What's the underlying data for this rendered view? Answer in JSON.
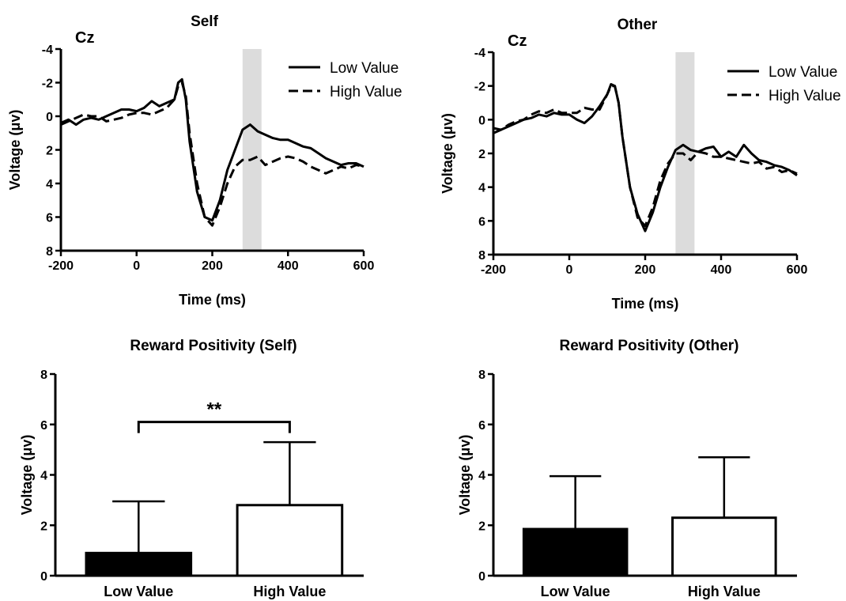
{
  "chart_data": [
    {
      "type": "line",
      "title": "Self",
      "channel": "Cz",
      "xlabel": "Time (ms)",
      "ylabel": "Voltage (μv)",
      "xlim": [
        -200,
        600
      ],
      "ylim": [
        8,
        -4
      ],
      "y_inverted": true,
      "xticks": [
        "-200",
        "0",
        "200",
        "400",
        "600"
      ],
      "yticks": [
        "-4",
        "-2",
        "0",
        "2",
        "4",
        "6",
        "8"
      ],
      "highlight": [
        280,
        330
      ],
      "legend": "top-right",
      "series": [
        {
          "name": "Low Value",
          "style": "solid",
          "x": [
            -200,
            -180,
            -160,
            -140,
            -120,
            -100,
            -80,
            -60,
            -40,
            -20,
            0,
            20,
            40,
            60,
            80,
            100,
            110,
            120,
            130,
            140,
            160,
            180,
            200,
            220,
            240,
            260,
            280,
            300,
            320,
            340,
            360,
            380,
            400,
            420,
            440,
            460,
            480,
            500,
            520,
            540,
            560,
            580,
            600
          ],
          "y": [
            0.4,
            0.2,
            0.5,
            0.2,
            0.1,
            0.2,
            0.0,
            -0.2,
            -0.4,
            -0.4,
            -0.3,
            -0.5,
            -0.9,
            -0.6,
            -0.8,
            -1.0,
            -2.0,
            -2.2,
            -1.0,
            1.5,
            4.5,
            6.0,
            6.2,
            5.0,
            3.2,
            2.0,
            0.8,
            0.5,
            0.9,
            1.1,
            1.3,
            1.4,
            1.4,
            1.6,
            1.8,
            1.9,
            2.2,
            2.5,
            2.7,
            2.9,
            2.8,
            2.8,
            3.0
          ]
        },
        {
          "name": "High Value",
          "style": "dashed",
          "x": [
            -200,
            -180,
            -160,
            -140,
            -120,
            -100,
            -80,
            -60,
            -40,
            -20,
            0,
            20,
            40,
            60,
            80,
            100,
            110,
            120,
            130,
            140,
            160,
            180,
            200,
            220,
            240,
            260,
            280,
            300,
            320,
            340,
            360,
            380,
            400,
            420,
            440,
            460,
            480,
            500,
            520,
            540,
            560,
            580,
            600
          ],
          "y": [
            0.5,
            0.3,
            0.1,
            -0.1,
            0.0,
            0.0,
            0.3,
            0.2,
            0.1,
            -0.1,
            -0.2,
            -0.2,
            -0.1,
            -0.3,
            -0.5,
            -1.0,
            -1.8,
            -2.0,
            -1.2,
            1.0,
            4.0,
            6.0,
            6.5,
            5.4,
            4.0,
            3.0,
            2.6,
            2.6,
            2.4,
            2.9,
            2.7,
            2.5,
            2.4,
            2.5,
            2.7,
            3.0,
            3.2,
            3.4,
            3.2,
            3.0,
            3.1,
            2.9,
            3.0
          ]
        }
      ]
    },
    {
      "type": "line",
      "title": "Other",
      "channel": "Cz",
      "xlabel": "Time (ms)",
      "ylabel": "Voltage (μv)",
      "xlim": [
        -200,
        600
      ],
      "ylim": [
        8,
        -4
      ],
      "y_inverted": true,
      "xticks": [
        "-200",
        "0",
        "200",
        "400",
        "600"
      ],
      "yticks": [
        "-4",
        "-2",
        "0",
        "2",
        "4",
        "6",
        "8"
      ],
      "highlight": [
        280,
        330
      ],
      "legend": "top-right",
      "series": [
        {
          "name": "Low Value",
          "style": "solid",
          "x": [
            -200,
            -180,
            -160,
            -140,
            -120,
            -100,
            -80,
            -60,
            -40,
            -20,
            0,
            20,
            40,
            60,
            80,
            100,
            110,
            120,
            130,
            140,
            160,
            180,
            200,
            220,
            240,
            260,
            280,
            300,
            320,
            340,
            360,
            380,
            400,
            420,
            440,
            460,
            480,
            500,
            520,
            540,
            560,
            580,
            600
          ],
          "y": [
            0.5,
            0.6,
            0.4,
            0.2,
            0.0,
            -0.1,
            -0.3,
            -0.2,
            -0.4,
            -0.3,
            -0.3,
            0.0,
            0.2,
            -0.2,
            -0.8,
            -1.5,
            -2.1,
            -2.0,
            -1.0,
            1.0,
            4.0,
            5.6,
            6.6,
            5.5,
            4.0,
            2.8,
            1.8,
            1.5,
            1.8,
            1.9,
            1.7,
            1.6,
            2.2,
            1.9,
            2.2,
            1.5,
            2.0,
            2.4,
            2.5,
            2.7,
            2.8,
            3.0,
            3.3
          ]
        },
        {
          "name": "High Value",
          "style": "dashed",
          "x": [
            -200,
            -180,
            -160,
            -140,
            -120,
            -100,
            -80,
            -60,
            -40,
            -20,
            0,
            20,
            40,
            60,
            80,
            100,
            110,
            120,
            130,
            140,
            160,
            180,
            200,
            220,
            240,
            260,
            280,
            300,
            320,
            340,
            360,
            380,
            400,
            420,
            440,
            460,
            480,
            500,
            520,
            540,
            560,
            580,
            600
          ],
          "y": [
            0.8,
            0.6,
            0.3,
            0.1,
            0.0,
            -0.3,
            -0.5,
            -0.4,
            -0.6,
            -0.4,
            -0.4,
            -0.4,
            -0.7,
            -0.6,
            -0.6,
            -1.5,
            -2.0,
            -2.0,
            -1.0,
            1.0,
            4.0,
            5.8,
            6.3,
            5.2,
            3.6,
            2.6,
            2.0,
            2.0,
            2.4,
            1.9,
            2.0,
            2.2,
            2.2,
            2.3,
            2.4,
            2.5,
            2.6,
            2.5,
            2.9,
            2.8,
            3.1,
            3.0,
            3.2
          ]
        }
      ]
    },
    {
      "type": "bar",
      "title": "Reward Positivity (Self)",
      "ylabel": "Voltage (μv)",
      "categories": [
        "Low Value",
        "High Value"
      ],
      "values": [
        0.9,
        2.8
      ],
      "error": [
        2.05,
        2.5
      ],
      "fills": [
        "#000000",
        "#ffffff"
      ],
      "ylim": [
        0,
        8
      ],
      "yticks": [
        "0",
        "2",
        "4",
        "6",
        "8"
      ],
      "significance": "**",
      "significance_y": 6.1
    },
    {
      "type": "bar",
      "title": "Reward Positivity (Other)",
      "ylabel": "Voltage (μv)",
      "categories": [
        "Low Value",
        "High Value"
      ],
      "values": [
        1.85,
        2.3
      ],
      "error": [
        2.1,
        2.4
      ],
      "fills": [
        "#000000",
        "#ffffff"
      ],
      "ylim": [
        0,
        8
      ],
      "yticks": [
        "0",
        "2",
        "4",
        "6",
        "8"
      ]
    }
  ]
}
